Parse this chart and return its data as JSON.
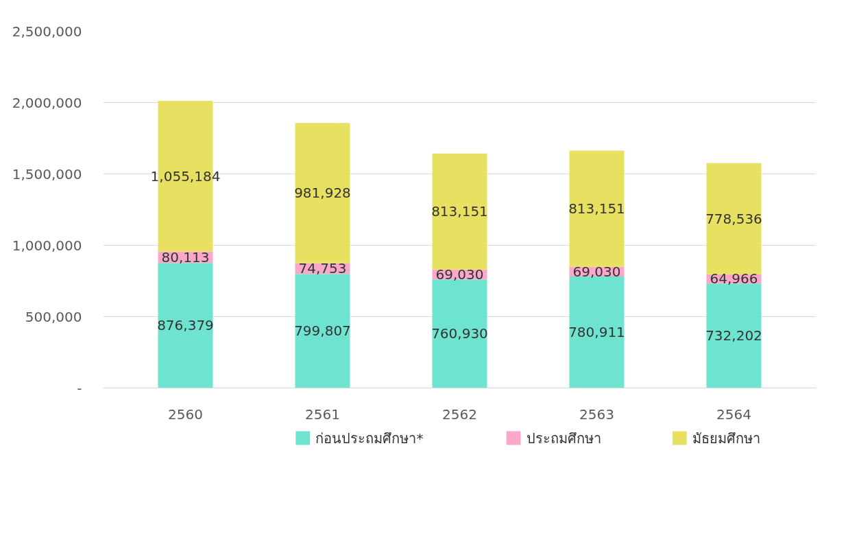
{
  "chart_data": {
    "type": "bar",
    "stacked": true,
    "categories": [
      "2560",
      "2561",
      "2562",
      "2563",
      "2564"
    ],
    "series": [
      {
        "name": "ก่อนประถมศึกษา*",
        "color": "#6ee3d0",
        "values": [
          876379,
          799807,
          760930,
          780911,
          732202
        ],
        "value_labels": [
          "876,379",
          "799,807",
          "760,930",
          "780,911",
          "732,202"
        ]
      },
      {
        "name": "ประถมศึกษา",
        "color": "#f9a8c9",
        "values": [
          80113,
          74753,
          69030,
          69030,
          64966
        ],
        "value_labels": [
          "80,113",
          "74,753",
          "69,030",
          "69,030",
          "64,966"
        ]
      },
      {
        "name": "มัธยมศึกษา",
        "color": "#e8e060",
        "values": [
          1055184,
          981928,
          813151,
          813151,
          778536
        ],
        "value_labels": [
          "1,055,184",
          "981,928",
          "813,151",
          "813,151",
          "778,536"
        ]
      }
    ],
    "ylim": [
      0,
      2500000
    ],
    "yticks": [
      {
        "value": 0,
        "label": "-"
      },
      {
        "value": 500000,
        "label": "500,000"
      },
      {
        "value": 1000000,
        "label": "1,000,000"
      },
      {
        "value": 1500000,
        "label": "1,500,000"
      },
      {
        "value": 2000000,
        "label": "2,000,000"
      },
      {
        "value": 2500000,
        "label": "2,500,000"
      }
    ],
    "grid": "y",
    "legend": "bottom"
  }
}
